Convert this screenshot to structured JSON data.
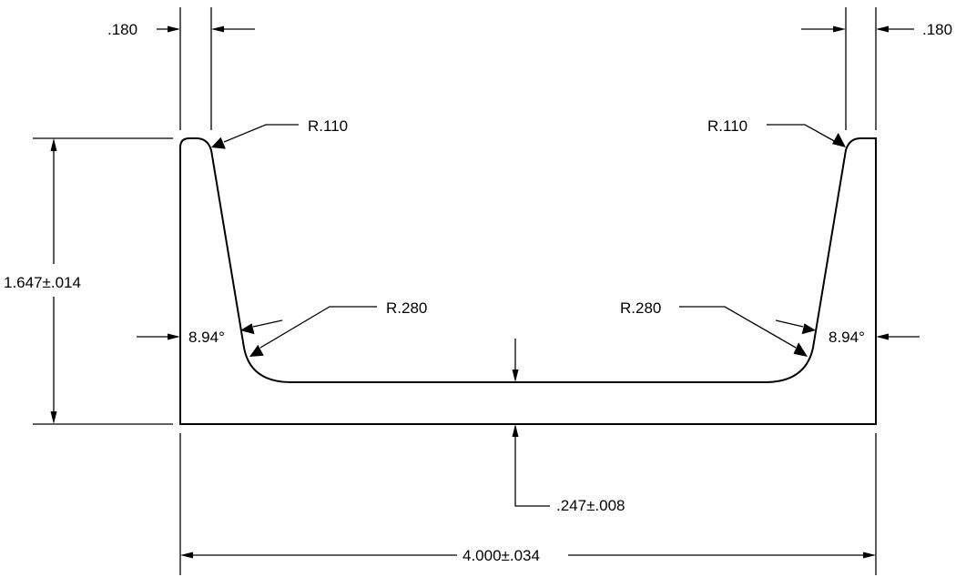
{
  "dimensions": {
    "left_thickness": ".180",
    "right_thickness": ".180",
    "left_top_radius": "R.110",
    "right_top_radius": "R.110",
    "height": "1.647±.014",
    "left_bottom_radius": "R.280",
    "right_bottom_radius": "R.280",
    "left_angle": "8.94°",
    "right_angle": "8.94°",
    "base_thickness": ".247±.008",
    "width": "4.000±.034"
  }
}
